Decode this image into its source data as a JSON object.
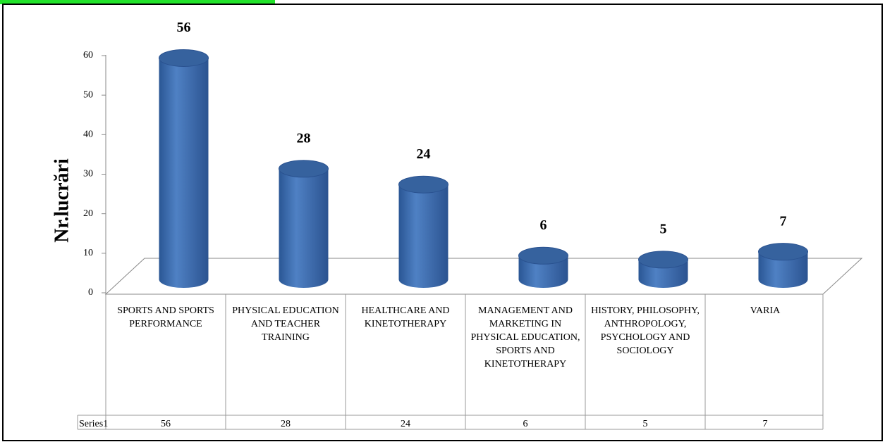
{
  "chart_data": {
    "type": "bar",
    "y_label": "Nr.lucrări",
    "categories": [
      "SPORTS AND SPORTS PERFORMANCE",
      "PHYSICAL EDUCATION AND TEACHER TRAINING",
      "HEALTHCARE AND KINETOTHERAPY",
      "MANAGEMENT AND MARKETING IN PHYSICAL EDUCATION, SPORTS AND KINETOTHERAPY",
      "HISTORY, PHILOSOPHY, ANTHROPOLOGY, PSYCHOLOGY AND SOCIOLOGY",
      "VARIA"
    ],
    "series": [
      {
        "name": "Series1",
        "color": "#4f81bd",
        "values": [
          56,
          28,
          24,
          6,
          5,
          7
        ]
      }
    ],
    "ylim": [
      0,
      60
    ],
    "yticks": [
      0,
      10,
      20,
      30,
      40,
      50,
      60
    ],
    "grid": false
  }
}
